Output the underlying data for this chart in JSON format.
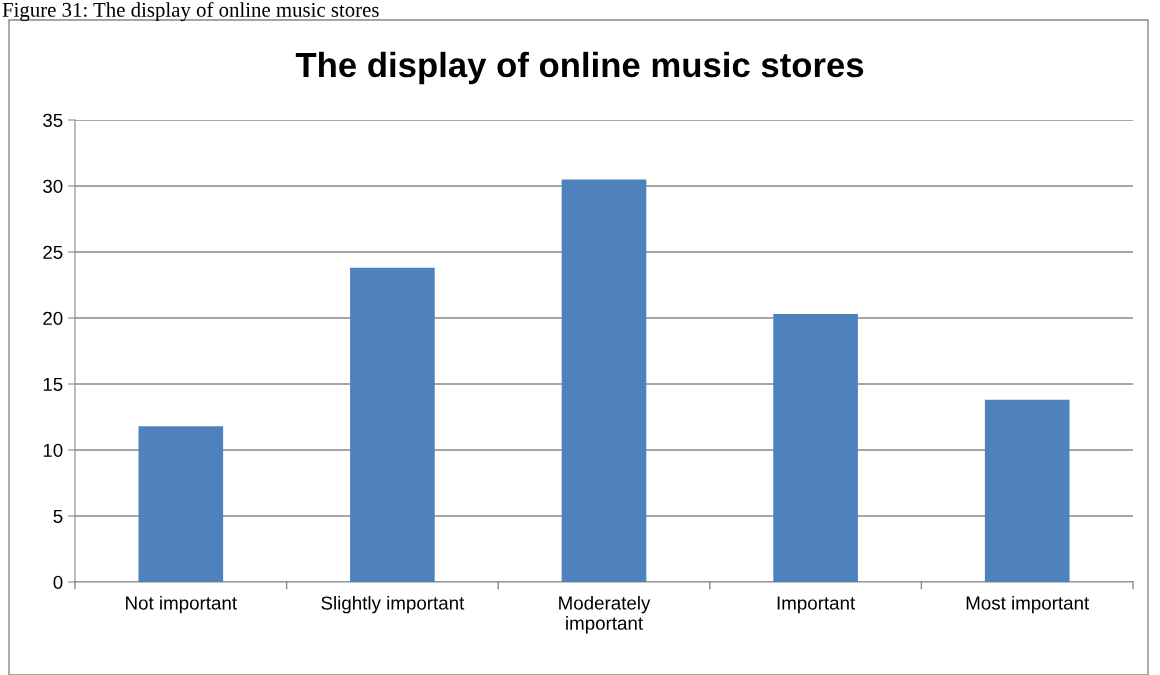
{
  "chart_data": {
    "type": "bar",
    "title": "The display of online music stores",
    "annotations": [
      "Figure 31: The display of online music stores"
    ],
    "categories": [
      "Not important",
      "Slightly important",
      "Moderately\nimportant",
      "Important",
      "Most important"
    ],
    "values": [
      11.8,
      23.8,
      30.5,
      20.3,
      13.8
    ],
    "color": "#4f81bd",
    "ylim": [
      0,
      35
    ],
    "yticks": [
      0,
      5,
      10,
      15,
      20,
      25,
      30,
      35
    ],
    "grid": "y",
    "legend": false
  }
}
